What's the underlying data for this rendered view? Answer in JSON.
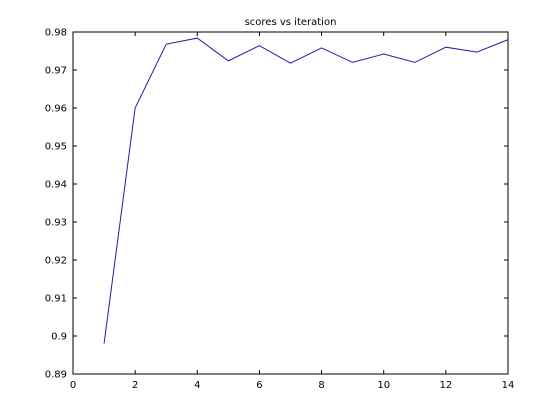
{
  "chart_data": {
    "type": "line",
    "title": "scores vs iteration",
    "xlabel": "",
    "ylabel": "",
    "xlim": [
      0,
      14
    ],
    "ylim": [
      0.89,
      0.98
    ],
    "grid": false,
    "xticks": [
      "0",
      "2",
      "4",
      "6",
      "8",
      "10",
      "12",
      "14"
    ],
    "yticks": [
      "0.89",
      "0.9",
      "0.91",
      "0.92",
      "0.93",
      "0.94",
      "0.95",
      "0.96",
      "0.97",
      "0.98"
    ],
    "series": [
      {
        "color": "#1f1fa6",
        "x": [
          1,
          2,
          3,
          4,
          5,
          6,
          7,
          8,
          9,
          10,
          11,
          12,
          13,
          14
        ],
        "y": [
          0.898,
          0.96,
          0.9768,
          0.9784,
          0.9724,
          0.9764,
          0.9718,
          0.9758,
          0.972,
          0.9742,
          0.972,
          0.976,
          0.9747,
          0.978
        ]
      }
    ]
  }
}
